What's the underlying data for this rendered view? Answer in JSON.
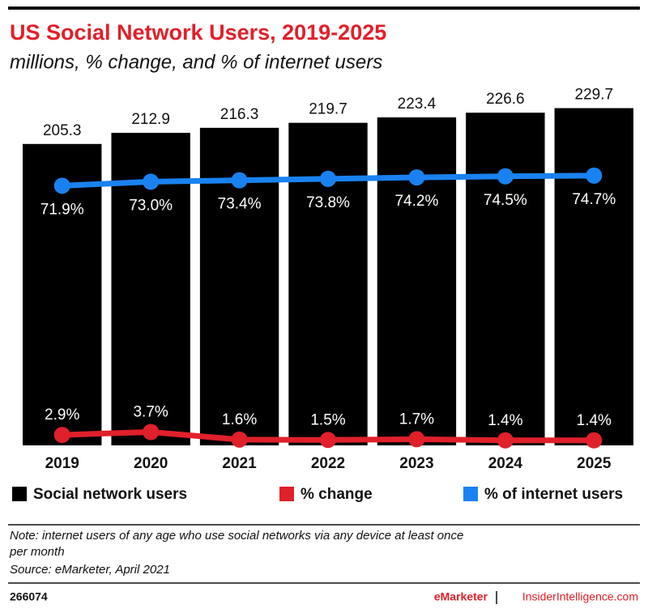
{
  "chart_data": {
    "type": "bar",
    "title": "US Social Network Users, 2019-2025",
    "subtitle": "millions, % change, and % of internet users",
    "categories": [
      "2019",
      "2020",
      "2021",
      "2022",
      "2023",
      "2024",
      "2025"
    ],
    "series": [
      {
        "name": "Social network users",
        "color": "#000000",
        "values": [
          205.3,
          212.9,
          216.3,
          219.7,
          223.4,
          226.6,
          229.7
        ]
      },
      {
        "name": "% change",
        "type": "line",
        "axis": "y2",
        "color": "#e0202a",
        "values": [
          2.9,
          3.7,
          1.6,
          1.5,
          1.7,
          1.4,
          1.4
        ],
        "value_labels": [
          "2.9%",
          "3.7%",
          "1.6%",
          "1.5%",
          "1.7%",
          "1.4%",
          "1.4%"
        ]
      },
      {
        "name": "% of internet users",
        "type": "line",
        "axis": "y2",
        "color": "#1a82f0",
        "values": [
          71.9,
          73.0,
          73.4,
          73.8,
          74.2,
          74.5,
          74.7
        ],
        "value_labels": [
          "71.9%",
          "73.0%",
          "73.4%",
          "73.8%",
          "74.2%",
          "74.5%",
          "74.7%"
        ]
      }
    ],
    "ylim": [
      0,
      230
    ],
    "y2lim": [
      0,
      93.5
    ],
    "note": "Note: internet users of any age who use social networks via any device at least once per month",
    "source": "Source: eMarketer, April 2021",
    "chart_id": "266074",
    "brand": "eMarketer",
    "site": "InsiderIntelligence.com"
  }
}
